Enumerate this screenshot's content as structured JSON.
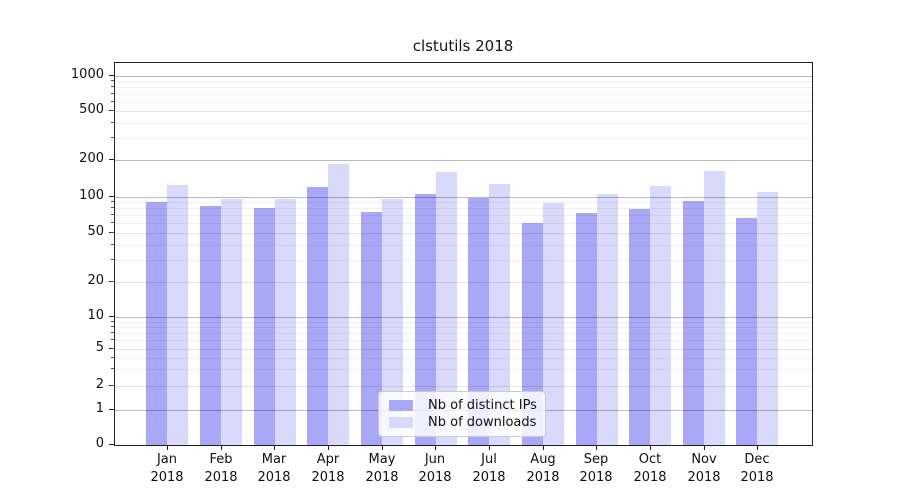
{
  "chart_data": {
    "type": "bar",
    "title": "clstutils 2018",
    "x_categories": [
      "Jan 2018",
      "Feb 2018",
      "Mar 2018",
      "Apr 2018",
      "May 2018",
      "Jun 2018",
      "Jul 2018",
      "Aug 2018",
      "Sep 2018",
      "Oct 2018",
      "Nov 2018",
      "Dec 2018"
    ],
    "x_tick_line1": [
      "Jan",
      "Feb",
      "Mar",
      "Apr",
      "May",
      "Jun",
      "Jul",
      "Aug",
      "Sep",
      "Oct",
      "Nov",
      "Dec"
    ],
    "x_tick_line2": "2018",
    "series": [
      {
        "name": "Nb of distinct IPs",
        "color": "#a8a8f6",
        "values": [
          90,
          83,
          81,
          119,
          74,
          105,
          97,
          60,
          73,
          79,
          91,
          66
        ]
      },
      {
        "name": "Nb of downloads",
        "color": "#d9d9fb",
        "values": [
          125,
          96,
          96,
          185,
          96,
          161,
          128,
          88,
          105,
          122,
          163,
          110
        ]
      }
    ],
    "yticks": [
      "1000",
      "500",
      "200",
      "100",
      "50",
      "20",
      "10",
      "5",
      "2",
      "1",
      "0"
    ],
    "yscale": "log above 1, linear segment 0-1 (symlog-like)",
    "ylim": [
      0,
      1300
    ],
    "grid": true,
    "legend_position": "lower center",
    "colors": {
      "distinct_ips_bar": "#a8a8f6",
      "downloads_bar": "#d9d9fb",
      "major_grid": "#bcbcbc",
      "minor_grid": "#efefef",
      "spine": "#1f1f1f"
    }
  }
}
